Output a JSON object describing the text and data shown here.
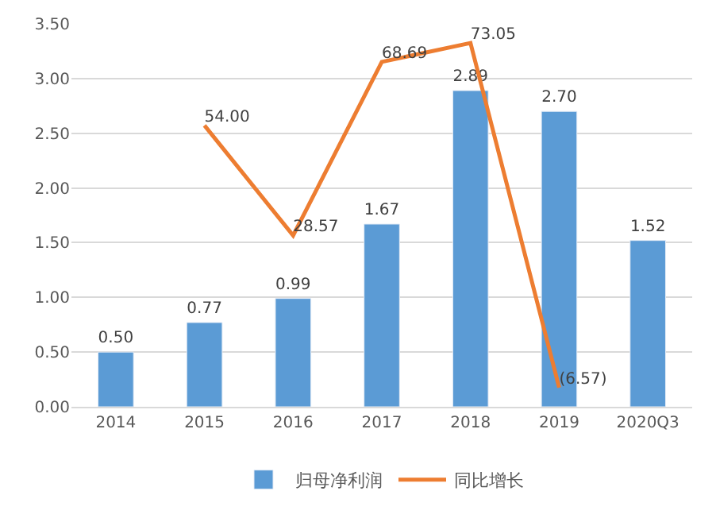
{
  "chart_data": {
    "type": "bar",
    "categories": [
      "2014",
      "2015",
      "2016",
      "2017",
      "2018",
      "2019",
      "2020Q3"
    ],
    "series": [
      {
        "name": "归母净利润",
        "color": "#5b9bd5",
        "values": [
          0.5,
          0.77,
          0.99,
          1.67,
          2.89,
          2.7,
          1.52
        ],
        "value_labels": [
          "0.50",
          "0.77",
          "0.99",
          "1.67",
          "2.89",
          "2.70",
          "1.52"
        ]
      },
      {
        "name": "同比增长",
        "type": "line",
        "axis": "y2",
        "color": "#ed7d31",
        "values": [
          null,
          54.0,
          28.57,
          68.69,
          73.05,
          -6.57,
          null
        ],
        "value_labels": [
          null,
          "54.00",
          "28.57",
          "68.69",
          "73.05",
          "(6.57)",
          null
        ]
      }
    ],
    "ylim": [
      0,
      3.5
    ],
    "yticks": [
      {
        "value": 0,
        "label": "0.00"
      },
      {
        "value": 0.5,
        "label": "0.50"
      },
      {
        "value": 1,
        "label": "1.00"
      },
      {
        "value": 1.5,
        "label": "1.50"
      },
      {
        "value": 2,
        "label": "2.00"
      },
      {
        "value": 2.5,
        "label": "2.50"
      },
      {
        "value": 3,
        "label": "3.00"
      },
      {
        "value": 3.5,
        "label": "3.50"
      }
    ],
    "grid": "y",
    "legend": "bottom",
    "marker": "none",
    "line_style": "solid"
  }
}
